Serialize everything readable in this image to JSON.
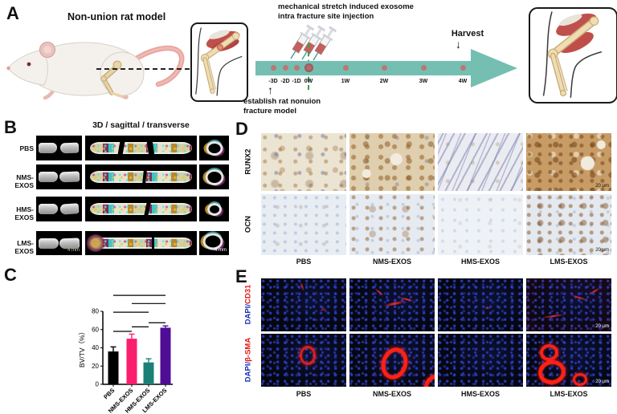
{
  "panelA": {
    "label": "A",
    "title": "Non-union rat model",
    "injection_note_line1": "mechanical stretch induced  exosome",
    "injection_note_line2": "intra fracture site injection",
    "establish_note_line1": "establish rat nonuion",
    "establish_note_line2": "fracture model",
    "harvest_label": "Harvest",
    "up_arrow": "↑",
    "down_arrow": "↓",
    "timeline": {
      "arrow_color": "#74bfb2",
      "dot_color": "#bd7676",
      "timepoints": [
        {
          "label": "-3D"
        },
        {
          "label": "-2D"
        },
        {
          "label": "-1D"
        },
        {
          "label": "0W"
        },
        {
          "label": "1W"
        },
        {
          "label": "2W"
        },
        {
          "label": "3W"
        },
        {
          "label": "4W"
        }
      ]
    }
  },
  "panelB": {
    "label": "B",
    "header": "3D / sagittal / transverse",
    "rows": [
      {
        "label": "PBS"
      },
      {
        "label": "NMS-EXOS"
      },
      {
        "label": "HMS-EXOS"
      },
      {
        "label": "LMS-EXOS"
      }
    ],
    "scale_bar": "4 mm"
  },
  "panelC": {
    "label": "C"
  },
  "chart_data": {
    "type": "bar",
    "title": "",
    "categories": [
      "PBS",
      "NMS-EXOS",
      "HMS-EXOS",
      "LMS-EXOS"
    ],
    "values": [
      36,
      50,
      24,
      62
    ],
    "errors": [
      5,
      5,
      4,
      2
    ],
    "bar_colors": [
      "#000000",
      "#fc1e6e",
      "#1c8077",
      "#4f0d96"
    ],
    "xlabel": "",
    "ylabel": "BV/TV（%）",
    "yticks": [
      0,
      20,
      40,
      60,
      80
    ],
    "ylim": [
      0,
      80
    ],
    "grid": false,
    "legend": false,
    "significance_lines": [
      {
        "from": 0,
        "to": 3,
        "height": 97.5
      },
      {
        "from": 1,
        "to": 3,
        "height": 88.5
      },
      {
        "from": 0,
        "to": 2,
        "height": 79
      },
      {
        "from": 2,
        "to": 3,
        "height": 67.5
      },
      {
        "from": 1,
        "to": 2,
        "height": 63
      },
      {
        "from": 0,
        "to": 1,
        "height": 58
      }
    ]
  },
  "panelD": {
    "label": "D",
    "row_labels": [
      "RUNX2",
      "OCN"
    ],
    "col_labels": [
      "PBS",
      "NMS-EXOS",
      "HMS-EXOS",
      "LMS-EXOS"
    ],
    "scale_bar": "20 μm"
  },
  "panelE": {
    "label": "E",
    "row_labels": [
      {
        "prefix": "DAPI/",
        "marker": "CD31"
      },
      {
        "prefix": "DAPI/",
        "marker": "β-SMA"
      }
    ],
    "col_labels": [
      "PBS",
      "NMS-EXOS",
      "HMS-EXOS",
      "LMS-EXOS"
    ],
    "scale_bar": "20 μm"
  }
}
